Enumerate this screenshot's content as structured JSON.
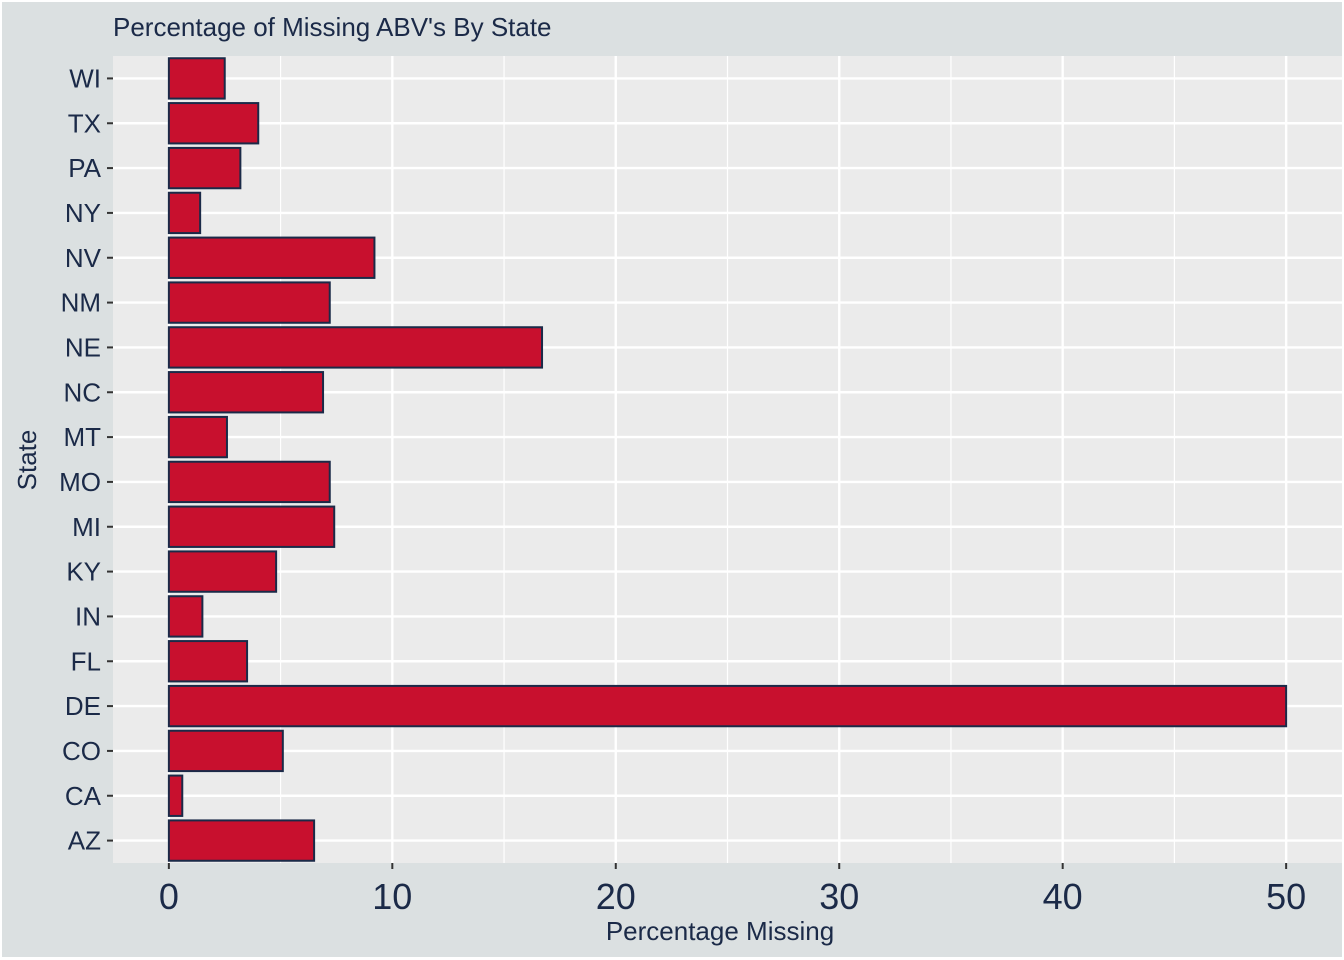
{
  "chart_data": {
    "type": "bar",
    "orientation": "horizontal",
    "title": "Percentage of Missing ABV's By State",
    "xlabel": "Percentage Missing",
    "ylabel": "State",
    "categories": [
      "AZ",
      "CA",
      "CO",
      "DE",
      "FL",
      "IN",
      "KY",
      "MI",
      "MO",
      "MT",
      "NC",
      "NE",
      "NM",
      "NV",
      "NY",
      "PA",
      "TX",
      "WI"
    ],
    "values": [
      6.5,
      0.6,
      5.1,
      50.0,
      3.5,
      1.5,
      4.8,
      7.4,
      7.2,
      2.6,
      6.9,
      16.7,
      7.2,
      9.2,
      1.4,
      3.2,
      4.0,
      2.5
    ],
    "xlim": [
      -2.5,
      52.5
    ],
    "xticks": [
      0,
      10,
      20,
      30,
      40,
      50
    ],
    "grid": true,
    "colors": {
      "bar_fill": "#c8102e",
      "bar_stroke": "#1b2a48",
      "panel": "#ebebeb",
      "background": "#dbe0e1",
      "grid": "#ffffff",
      "text": "#1b2a48"
    }
  }
}
